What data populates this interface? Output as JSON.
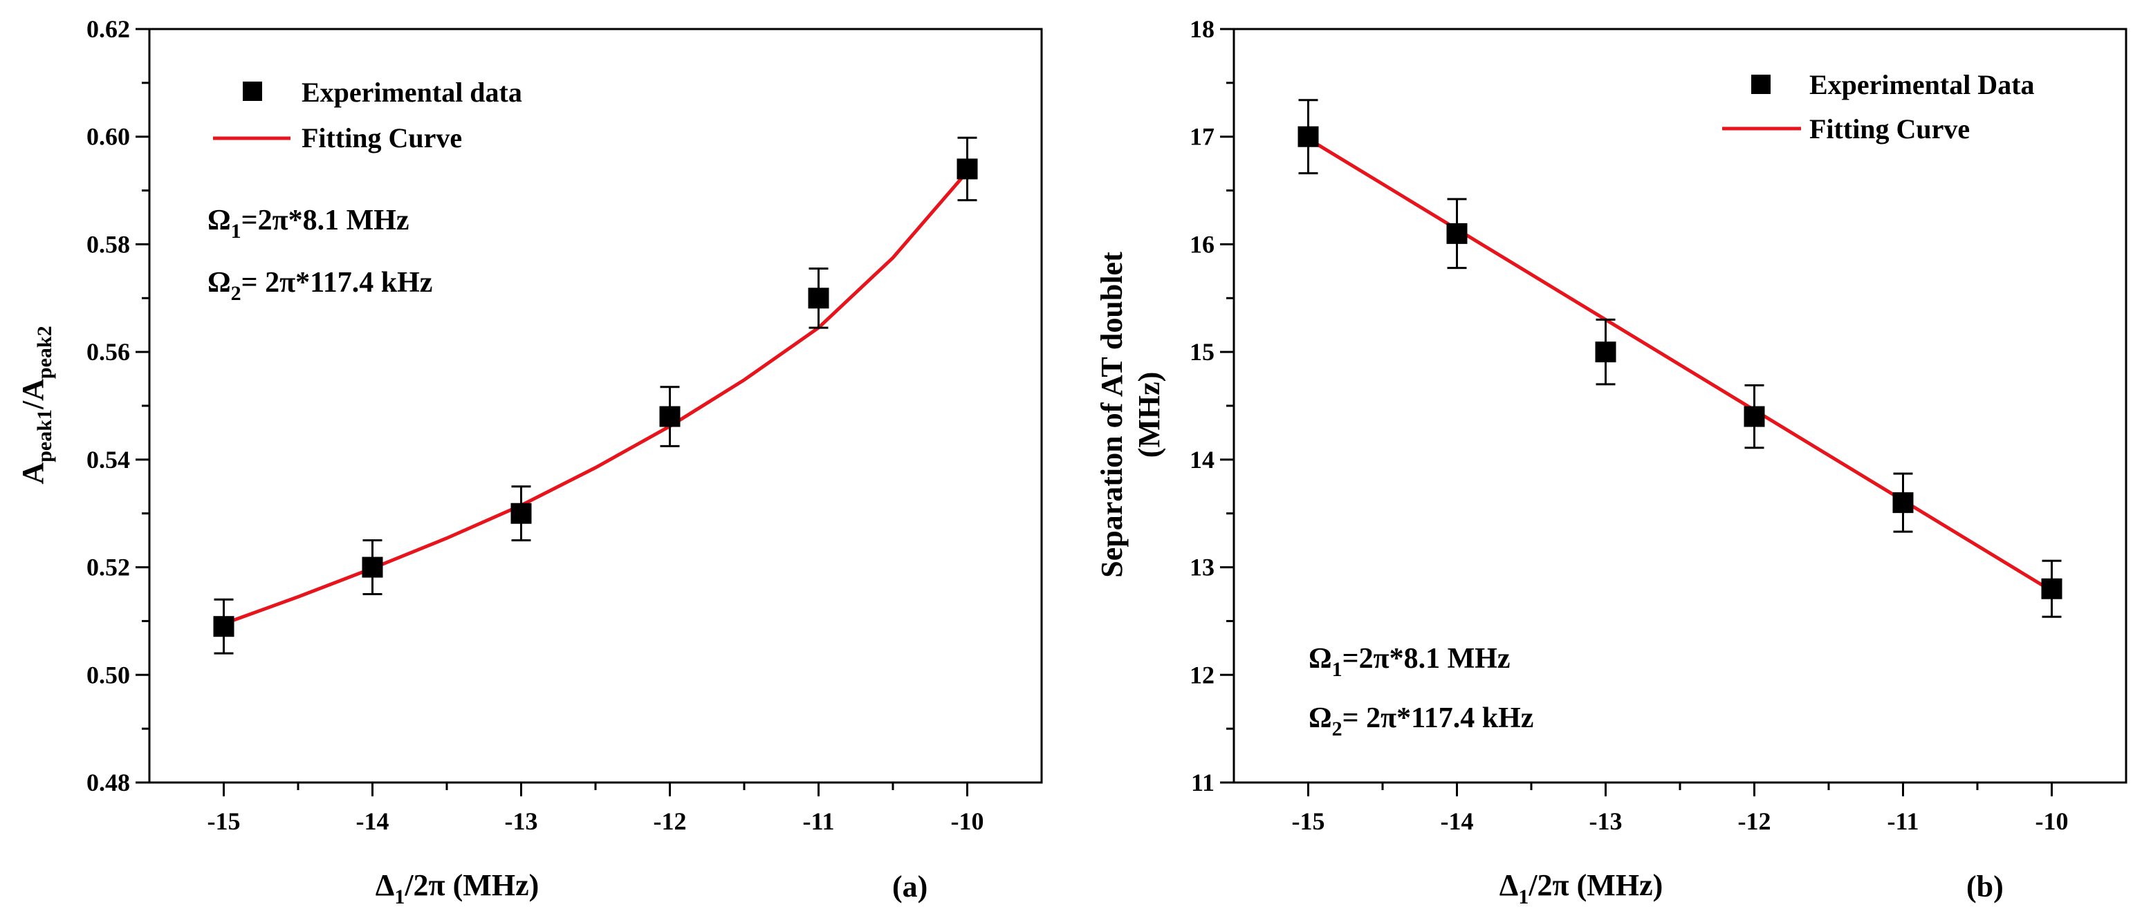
{
  "chart_data": [
    {
      "type": "scatter",
      "panel_label": "(a)",
      "xlabel": {
        "main": "Δ",
        "sub": "1",
        "rest": "/2π (MHz)"
      },
      "ylabel": {
        "main": "A",
        "sub1": "peak1",
        "mid": "/A",
        "sub2": "peak2"
      },
      "xlim": [
        -15.5,
        -9.5
      ],
      "ylim": [
        0.48,
        0.62
      ],
      "xticks": [
        -15,
        -14,
        -13,
        -12,
        -11,
        -10
      ],
      "xtick_labels": [
        "-15",
        "-14",
        "-13",
        "-12",
        "-11",
        "-10"
      ],
      "yticks": [
        0.48,
        0.5,
        0.52,
        0.54,
        0.56,
        0.58,
        0.6,
        0.62
      ],
      "ytick_labels": [
        "0.48",
        "0.50",
        "0.52",
        "0.54",
        "0.56",
        "0.58",
        "0.60",
        "0.62"
      ],
      "series": [
        {
          "name": "Experimental data",
          "kind": "markers",
          "x": [
            -15,
            -14,
            -13,
            -12,
            -11,
            -10
          ],
          "y": [
            0.509,
            0.52,
            0.53,
            0.548,
            0.57,
            0.594
          ],
          "yerr": [
            0.005,
            0.005,
            0.005,
            0.0055,
            0.0055,
            0.0058
          ]
        },
        {
          "name": "Fitting Curve",
          "kind": "line",
          "color": "#e8141c",
          "x": [
            -15,
            -14.5,
            -14,
            -13.5,
            -13,
            -12.5,
            -12,
            -11.5,
            -11,
            -10.5,
            -10
          ],
          "y": [
            0.5095,
            0.5145,
            0.5198,
            0.5254,
            0.5315,
            0.5385,
            0.5462,
            0.5548,
            0.5645,
            0.5775,
            0.5935
          ]
        }
      ],
      "legend": {
        "placement": "top-left",
        "items": [
          {
            "label": "Experimental data",
            "kind": "marker"
          },
          {
            "label": "Fitting Curve",
            "kind": "line"
          }
        ]
      },
      "annotations": [
        {
          "main": "Ω",
          "sub": "1",
          "rest": "=2π*8.1 MHz"
        },
        {
          "main": "Ω",
          "sub": "2",
          "rest": "= 2π*117.4 kHz"
        }
      ]
    },
    {
      "type": "scatter",
      "panel_label": "(b)",
      "xlabel": {
        "main": "Δ",
        "sub": "1",
        "rest": "/2π (MHz)"
      },
      "ylabel": {
        "line1": "Separation of AT doublet",
        "line2": "(MHz)"
      },
      "xlim": [
        -15.5,
        -9.5
      ],
      "ylim": [
        11,
        18
      ],
      "xticks": [
        -15,
        -14,
        -13,
        -12,
        -11,
        -10
      ],
      "xtick_labels": [
        "-15",
        "-14",
        "-13",
        "-12",
        "-11",
        "-10"
      ],
      "yticks": [
        11,
        12,
        13,
        14,
        15,
        16,
        17,
        18
      ],
      "ytick_labels": [
        "11",
        "12",
        "13",
        "14",
        "15",
        "16",
        "17",
        "18"
      ],
      "series": [
        {
          "name": "Experimental Data",
          "kind": "markers",
          "x": [
            -15,
            -14,
            -13,
            -12,
            -11,
            -10
          ],
          "y": [
            17.0,
            16.1,
            15.0,
            14.4,
            13.6,
            12.8
          ],
          "yerr": [
            0.34,
            0.32,
            0.3,
            0.29,
            0.27,
            0.26
          ]
        },
        {
          "name": "Fitting Curve",
          "kind": "line",
          "color": "#e8141c",
          "x": [
            -15,
            -10
          ],
          "y": [
            16.98,
            12.78
          ]
        }
      ],
      "legend": {
        "placement": "top-right",
        "items": [
          {
            "label": "Experimental Data",
            "kind": "marker"
          },
          {
            "label": "Fitting Curve",
            "kind": "line"
          }
        ]
      },
      "annotations": [
        {
          "main": "Ω",
          "sub": "1",
          "rest": "=2π*8.1 MHz"
        },
        {
          "main": "Ω",
          "sub": "2",
          "rest": "= 2π*117.4 kHz"
        }
      ]
    }
  ]
}
